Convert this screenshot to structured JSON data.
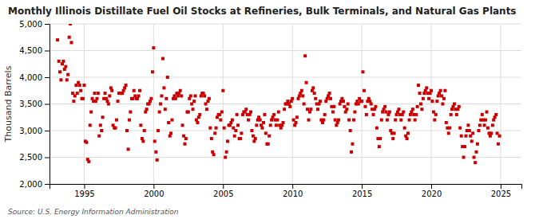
{
  "chart_data": {
    "type": "scatter",
    "title": "Monthly Illinois Distillate Fuel Oil Stocks at Refineries, Bulk Terminals, and Natural Gas Plants",
    "ylabel": "Thousand Barrels",
    "source": "Source: U.S. Energy Information Administration",
    "color": "#cc0000",
    "marker": "square",
    "grid": true,
    "xlim": [
      1992.5,
      2026.5
    ],
    "xticks": [
      1995,
      2000,
      2005,
      2010,
      2015,
      2020,
      2025
    ],
    "ylim": [
      2000,
      5000
    ],
    "yticks": [
      {
        "value": 2000,
        "label": "2,000"
      },
      {
        "value": 2500,
        "label": "2,500"
      },
      {
        "value": 3000,
        "label": "3,000"
      },
      {
        "value": 3500,
        "label": "3,500"
      },
      {
        "value": 4000,
        "label": "4,000"
      },
      {
        "value": 4500,
        "label": "4,500"
      },
      {
        "value": 5000,
        "label": "5,000"
      }
    ],
    "x": [
      1993.08,
      1993.17,
      1993.25,
      1993.33,
      1993.42,
      1993.5,
      1993.58,
      1993.67,
      1993.75,
      1993.83,
      1993.92,
      1994.0,
      1994.08,
      1994.17,
      1994.25,
      1994.33,
      1994.42,
      1994.5,
      1994.58,
      1994.67,
      1994.75,
      1994.83,
      1994.92,
      1995.0,
      1995.08,
      1995.17,
      1995.25,
      1995.33,
      1995.42,
      1995.5,
      1995.58,
      1995.67,
      1995.75,
      1995.83,
      1995.92,
      1996.0,
      1996.08,
      1996.17,
      1996.25,
      1996.33,
      1996.42,
      1996.5,
      1996.58,
      1996.67,
      1996.75,
      1996.83,
      1996.92,
      1997.0,
      1997.08,
      1997.17,
      1997.25,
      1997.33,
      1997.42,
      1997.5,
      1997.58,
      1997.67,
      1997.75,
      1997.83,
      1997.92,
      1998.0,
      1998.08,
      1998.17,
      1998.25,
      1998.33,
      1998.42,
      1998.5,
      1998.58,
      1998.67,
      1998.75,
      1998.83,
      1998.92,
      1999.0,
      1999.08,
      1999.17,
      1999.25,
      1999.33,
      1999.42,
      1999.5,
      1999.58,
      1999.67,
      1999.75,
      1999.83,
      1999.92,
      2000.0,
      2000.08,
      2000.17,
      2000.25,
      2000.33,
      2000.42,
      2000.5,
      2000.58,
      2000.67,
      2000.75,
      2000.83,
      2000.92,
      2001.0,
      2001.08,
      2001.17,
      2001.25,
      2001.33,
      2001.42,
      2001.5,
      2001.58,
      2001.67,
      2001.75,
      2001.83,
      2001.92,
      2002.0,
      2002.08,
      2002.17,
      2002.25,
      2002.33,
      2002.42,
      2002.5,
      2002.58,
      2002.67,
      2002.75,
      2002.83,
      2002.92,
      2003.0,
      2003.08,
      2003.17,
      2003.25,
      2003.33,
      2003.42,
      2003.5,
      2003.58,
      2003.67,
      2003.75,
      2003.83,
      2003.92,
      2004.0,
      2004.08,
      2004.17,
      2004.25,
      2004.33,
      2004.42,
      2004.5,
      2004.58,
      2004.67,
      2004.75,
      2004.83,
      2004.92,
      2005.0,
      2005.08,
      2005.17,
      2005.25,
      2005.33,
      2005.42,
      2005.5,
      2005.58,
      2005.67,
      2005.75,
      2005.83,
      2005.92,
      2006.0,
      2006.08,
      2006.17,
      2006.25,
      2006.33,
      2006.42,
      2006.5,
      2006.58,
      2006.67,
      2006.75,
      2006.83,
      2006.92,
      2007.0,
      2007.08,
      2007.17,
      2007.25,
      2007.33,
      2007.42,
      2007.5,
      2007.58,
      2007.67,
      2007.75,
      2007.83,
      2007.92,
      2008.0,
      2008.08,
      2008.17,
      2008.25,
      2008.33,
      2008.42,
      2008.5,
      2008.58,
      2008.67,
      2008.75,
      2008.83,
      2008.92,
      2009.0,
      2009.08,
      2009.17,
      2009.25,
      2009.33,
      2009.42,
      2009.5,
      2009.58,
      2009.67,
      2009.75,
      2009.83,
      2009.92,
      2010.0,
      2010.08,
      2010.17,
      2010.25,
      2010.33,
      2010.42,
      2010.5,
      2010.58,
      2010.67,
      2010.75,
      2010.83,
      2010.92,
      2011.0,
      2011.08,
      2011.17,
      2011.25,
      2011.33,
      2011.42,
      2011.5,
      2011.58,
      2011.67,
      2011.75,
      2011.83,
      2011.92,
      2012.0,
      2012.08,
      2012.17,
      2012.25,
      2012.33,
      2012.42,
      2012.5,
      2012.58,
      2012.67,
      2012.75,
      2012.83,
      2012.92,
      2013.0,
      2013.08,
      2013.17,
      2013.25,
      2013.33,
      2013.42,
      2013.5,
      2013.58,
      2013.67,
      2013.75,
      2013.83,
      2013.92,
      2014.0,
      2014.08,
      2014.17,
      2014.25,
      2014.33,
      2014.42,
      2014.5,
      2014.58,
      2014.67,
      2014.75,
      2014.83,
      2014.92,
      2015.0,
      2015.08,
      2015.17,
      2015.25,
      2015.33,
      2015.42,
      2015.5,
      2015.58,
      2015.67,
      2015.75,
      2015.83,
      2015.92,
      2016.0,
      2016.08,
      2016.17,
      2016.25,
      2016.33,
      2016.42,
      2016.5,
      2016.58,
      2016.67,
      2016.75,
      2016.83,
      2016.92,
      2017.0,
      2017.08,
      2017.17,
      2017.25,
      2017.33,
      2017.42,
      2017.5,
      2017.58,
      2017.67,
      2017.75,
      2017.83,
      2017.92,
      2018.0,
      2018.08,
      2018.17,
      2018.25,
      2018.33,
      2018.42,
      2018.5,
      2018.58,
      2018.67,
      2018.75,
      2018.83,
      2018.92,
      2019.0,
      2019.08,
      2019.17,
      2019.25,
      2019.33,
      2019.42,
      2019.5,
      2019.58,
      2019.67,
      2019.75,
      2019.83,
      2019.92,
      2020.0,
      2020.08,
      2020.17,
      2020.25,
      2020.33,
      2020.42,
      2020.5,
      2020.58,
      2020.67,
      2020.75,
      2020.83,
      2020.92,
      2021.0,
      2021.08,
      2021.17,
      2021.25,
      2021.33,
      2021.42,
      2021.5,
      2021.58,
      2021.67,
      2021.75,
      2021.83,
      2021.92,
      2022.0,
      2022.08,
      2022.17,
      2022.25,
      2022.33,
      2022.42,
      2022.5,
      2022.58,
      2022.67,
      2022.75,
      2022.83,
      2022.92,
      2023.0,
      2023.08,
      2023.17,
      2023.25,
      2023.33,
      2023.42,
      2023.5,
      2023.58,
      2023.67,
      2023.75,
      2023.83,
      2023.92,
      2024.0,
      2024.08,
      2024.17,
      2024.25,
      2024.33,
      2024.42,
      2024.5,
      2024.58,
      2024.67,
      2024.75,
      2024.83,
      2024.92
    ],
    "values": [
      4700,
      4300,
      4100,
      3950,
      4250,
      4300,
      4150,
      4200,
      3950,
      4050,
      4750,
      5000,
      4650,
      3700,
      3550,
      3650,
      3850,
      3700,
      3900,
      3850,
      3750,
      3600,
      3600,
      3850,
      2800,
      2780,
      2460,
      2420,
      3100,
      3350,
      3600,
      3550,
      3700,
      3550,
      3600,
      3700,
      2900,
      3100,
      3000,
      3250,
      3600,
      3700,
      3600,
      3550,
      3500,
      3650,
      3800,
      3750,
      3100,
      3050,
      3050,
      3200,
      3550,
      3700,
      3700,
      3700,
      3700,
      3750,
      3800,
      3850,
      3000,
      2650,
      3200,
      3350,
      3600,
      3600,
      3750,
      3650,
      3600,
      3600,
      3650,
      3750,
      3100,
      2850,
      2800,
      3000,
      3350,
      3400,
      3500,
      3500,
      3550,
      3600,
      4100,
      4550,
      2800,
      2600,
      2450,
      3000,
      3350,
      3500,
      3650,
      4350,
      3800,
      3400,
      3600,
      4000,
      3150,
      2900,
      2950,
      3200,
      3600,
      3650,
      3600,
      3700,
      3650,
      3700,
      3750,
      3650,
      3100,
      2900,
      2750,
      2850,
      3350,
      3350,
      3600,
      3650,
      3500,
      3400,
      3550,
      3650,
      3200,
      3150,
      3250,
      3300,
      3650,
      3700,
      3700,
      3650,
      3500,
      3400,
      3550,
      3600,
      3050,
      2850,
      2600,
      2550,
      2950,
      3050,
      3250,
      3300,
      3300,
      3200,
      3350,
      3750,
      3050,
      2500,
      2600,
      2800,
      3100,
      3100,
      3150,
      3200,
      3050,
      2900,
      3000,
      3300,
      3100,
      2850,
      2850,
      2950,
      3300,
      3350,
      3350,
      3400,
      3300,
      3200,
      3300,
      3350,
      3000,
      2900,
      2800,
      2850,
      3100,
      3200,
      3250,
      3200,
      3100,
      3050,
      3150,
      3300,
      2950,
      2750,
      2750,
      2900,
      3100,
      3200,
      3250,
      3300,
      3200,
      3100,
      3200,
      3350,
      3100,
      3050,
      3100,
      3150,
      3400,
      3500,
      3500,
      3550,
      3500,
      3450,
      3550,
      3600,
      3200,
      3100,
      3150,
      3250,
      3600,
      3650,
      3700,
      3750,
      3650,
      3500,
      4400,
      3900,
      3400,
      3200,
      3350,
      3400,
      3750,
      3800,
      3700,
      3600,
      3500,
      3400,
      3500,
      3550,
      3200,
      3150,
      3200,
      3300,
      3550,
      3600,
      3650,
      3700,
      3600,
      3450,
      3350,
      3450,
      3200,
      3100,
      3150,
      3200,
      3500,
      3550,
      3600,
      3550,
      3450,
      3350,
      3400,
      3500,
      3200,
      3000,
      2600,
      2750,
      3200,
      3350,
      3500,
      3550,
      3500,
      3600,
      3550,
      3550,
      4100,
      3750,
      3450,
      3300,
      3550,
      3600,
      3550,
      3500,
      3400,
      3300,
      3400,
      3450,
      3050,
      2850,
      2700,
      2850,
      3200,
      3350,
      3400,
      3450,
      3350,
      3200,
      3300,
      3350,
      3000,
      2950,
      2850,
      2950,
      3200,
      3300,
      3350,
      3400,
      3300,
      3200,
      3300,
      3350,
      3050,
      2900,
      2850,
      2950,
      3200,
      3300,
      3350,
      3400,
      3300,
      3200,
      3300,
      3450,
      3850,
      3700,
      3500,
      3400,
      3600,
      3700,
      3750,
      3800,
      3700,
      3600,
      3700,
      3750,
      3550,
      3350,
      3200,
      3300,
      3550,
      3650,
      3700,
      3750,
      3650,
      3500,
      3600,
      3750,
      3150,
      3050,
      2950,
      3050,
      3300,
      3400,
      3450,
      3500,
      3400,
      3300,
      3400,
      3450,
      3050,
      2900,
      2700,
      2500,
      2700,
      2900,
      3000,
      3100,
      3000,
      2900,
      2800,
      2950,
      2500,
      2400,
      2600,
      2750,
      3000,
      3100,
      3200,
      3300,
      3200,
      3100,
      3200,
      3350,
      3050,
      2950,
      2900,
      2950,
      3100,
      3200,
      3250,
      3300,
      2950,
      2750,
      2900
    ]
  }
}
